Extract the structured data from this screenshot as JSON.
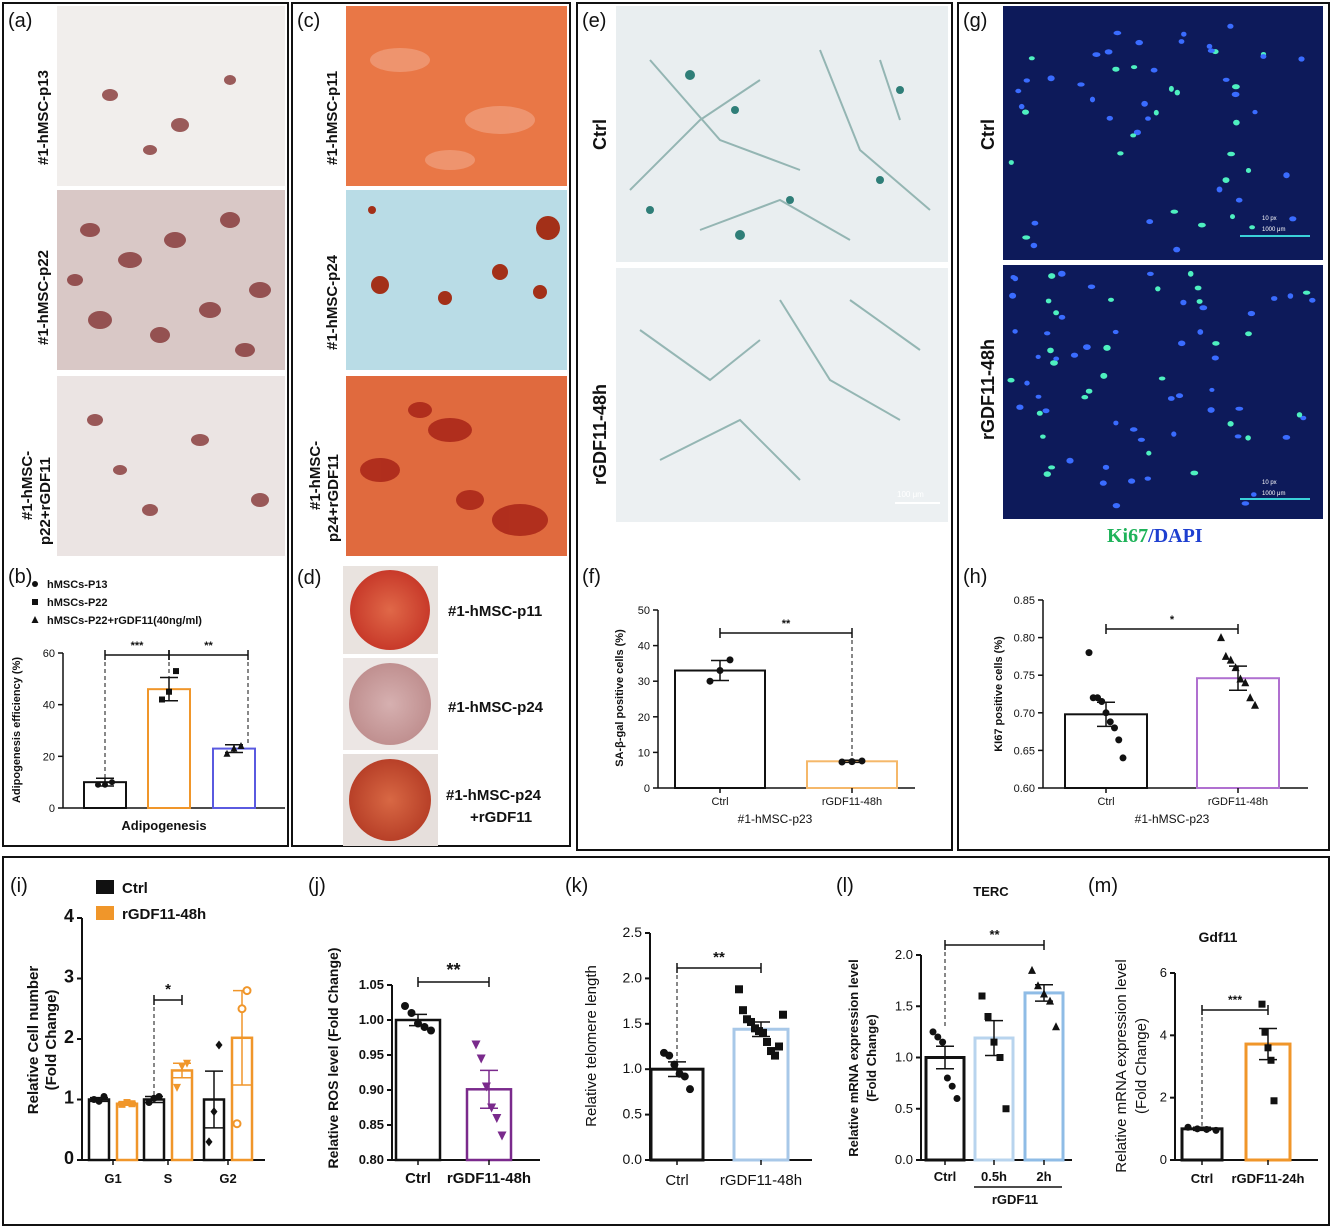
{
  "panel_letters": {
    "a": "(a)",
    "b": "(b)",
    "c": "(c)",
    "d": "(d)",
    "e": "(e)",
    "f": "(f)",
    "g": "(g)",
    "h": "(h)",
    "i": "(i)",
    "j": "(j)",
    "k": "(k)",
    "l": "(l)",
    "m": "(m)"
  },
  "image_labels": {
    "a": [
      "#1-hMSC-p13",
      "#1-hMSC-p22",
      "#1-hMSC-",
      "p22+rGDF11"
    ],
    "c": [
      "#1-hMSC-p11",
      "#1-hMSC-p24",
      "#1-hMSC-",
      "p24+rGDF11"
    ],
    "d": [
      "#1-hMSC-p11",
      "#1-hMSC-p24",
      "#1-hMSC-p24",
      "+rGDF11"
    ],
    "e": [
      "Ctrl",
      "rGDF11-48h"
    ],
    "g": [
      "Ctrl",
      "rGDF11-48h"
    ],
    "g_stain": [
      "Ki67",
      "/",
      "DAPI"
    ],
    "e_scalebar": "100 μm",
    "g_scalebar": [
      "10 px",
      "1000 μm"
    ]
  },
  "colors": {
    "orange": "#F0962A",
    "blue": "#5A5AE0",
    "purple": "#7A2A8C",
    "lightblue": "#A8C8E8",
    "violet": "#B070D0",
    "black": "#111111",
    "ki67": "#1FB35A",
    "dapi": "#1E3FD0"
  },
  "chart_data": [
    {
      "id": "b",
      "type": "bar",
      "ylabel": "Adipogenesis efficiency (%)",
      "xlabel": "Adipogenesis",
      "ylim": [
        0,
        60
      ],
      "yticks": [
        "0",
        "20",
        "40",
        "60"
      ],
      "legend": [
        "hMSCs-P13",
        "hMSCs-P22",
        "hMSCs-P22+rGDF11(40ng/ml)"
      ],
      "values": [
        10,
        46,
        23
      ],
      "errors": [
        1.5,
        4.5,
        1.5
      ],
      "points": [
        [
          9,
          9,
          10
        ],
        [
          42,
          45,
          53
        ],
        [
          21,
          23,
          24
        ]
      ],
      "sig": [
        "***",
        "**"
      ]
    },
    {
      "id": "f",
      "type": "bar",
      "ylabel": "SA-β-gal positive cells (%)",
      "xlabel": "#1-hMSC-p23",
      "ylim": [
        0,
        50
      ],
      "yticks": [
        "0",
        "10",
        "20",
        "30",
        "40",
        "50"
      ],
      "categories": [
        "Ctrl",
        "rGDF11-48h"
      ],
      "values": [
        33,
        7.5
      ],
      "errors": [
        2.8,
        0.3
      ],
      "points": [
        [
          30,
          33,
          36
        ],
        [
          7.3,
          7.4,
          7.6
        ]
      ],
      "sig": [
        "**"
      ]
    },
    {
      "id": "h",
      "type": "bar",
      "ylabel": "KI67 positive cells (%)",
      "xlabel": "#1-hMSC-p23",
      "ylim": [
        0.6,
        0.85
      ],
      "yticks": [
        "0.60",
        "0.65",
        "0.70",
        "0.75",
        "0.80",
        "0.85"
      ],
      "categories": [
        "Ctrl",
        "rGDF11-48h"
      ],
      "values": [
        0.698,
        0.746
      ],
      "errors": [
        0.016,
        0.016
      ],
      "points": [
        [
          0.78,
          0.72,
          0.72,
          0.715,
          0.7,
          0.688,
          0.68,
          0.664,
          0.64
        ],
        [
          0.8,
          0.775,
          0.77,
          0.76,
          0.745,
          0.74,
          0.72,
          0.71
        ]
      ],
      "sig": [
        "*"
      ]
    },
    {
      "id": "i",
      "type": "bar",
      "ylabel": "Relative Cell number (Fold Change)",
      "ylim": [
        0,
        4
      ],
      "yticks": [
        "0",
        "1",
        "2",
        "3",
        "4"
      ],
      "categories": [
        "G1",
        "S",
        "G2"
      ],
      "series": [
        {
          "name": "Ctrl",
          "values": [
            1.0,
            1.0,
            1.0
          ],
          "errors": [
            0.03,
            0.05,
            0.47
          ],
          "points": [
            [
              1.0,
              0.97,
              1.05
            ],
            [
              0.95,
              1.02,
              1.05
            ],
            [
              0.3,
              0.8,
              1.9
            ]
          ]
        },
        {
          "name": "rGDF11-48h",
          "values": [
            0.93,
            1.48,
            2.02
          ],
          "errors": [
            0.02,
            0.12,
            0.78
          ],
          "points": [
            [
              0.92,
              0.95,
              0.93
            ],
            [
              1.2,
              1.55,
              1.6
            ],
            [
              0.6,
              2.5,
              2.8
            ]
          ]
        }
      ],
      "sig": [
        "*"
      ]
    },
    {
      "id": "j",
      "type": "bar",
      "ylabel": "Relative  ROS level (Fold Change)",
      "ylim": [
        0.8,
        1.05
      ],
      "yticks": [
        "0.80",
        "0.85",
        "0.90",
        "0.95",
        "1.00",
        "1.05"
      ],
      "categories": [
        "Ctrl",
        "rGDF11-48h"
      ],
      "values": [
        1.0,
        0.901
      ],
      "errors": [
        0.008,
        0.027
      ],
      "points": [
        [
          1.02,
          1.01,
          0.995,
          0.99,
          0.985
        ],
        [
          0.965,
          0.945,
          0.905,
          0.875,
          0.86,
          0.835
        ]
      ],
      "sig": [
        "**"
      ]
    },
    {
      "id": "k",
      "type": "bar",
      "ylabel": "Relative telomere length",
      "ylim": [
        0,
        2.5
      ],
      "yticks": [
        "0.0",
        "0.5",
        "1.0",
        "1.5",
        "2.0",
        "2.5"
      ],
      "categories": [
        "Ctrl",
        "rGDF11-48h"
      ],
      "values": [
        1.0,
        1.44
      ],
      "errors": [
        0.08,
        0.08
      ],
      "points": [
        [
          1.18,
          1.15,
          1.05,
          0.95,
          0.92,
          0.78
        ],
        [
          1.88,
          1.65,
          1.55,
          1.52,
          1.45,
          1.42,
          1.4,
          1.3,
          1.2,
          1.15,
          1.25,
          1.6
        ]
      ],
      "sig": [
        "**"
      ]
    },
    {
      "id": "l",
      "type": "bar",
      "title": "TERC",
      "ylabel": "Relative  mRNA expression level (Fold Change)",
      "xlabel": "rGDF11",
      "ylim": [
        0,
        2.0
      ],
      "yticks": [
        "0.0",
        "0.5",
        "1.0",
        "1.5",
        "2.0"
      ],
      "categories": [
        "Ctrl",
        "0.5h",
        "2h"
      ],
      "values": [
        1.0,
        1.19,
        1.63
      ],
      "errors": [
        0.11,
        0.17,
        0.08
      ],
      "points": [
        [
          1.25,
          1.2,
          1.15,
          0.8,
          0.72,
          0.6
        ],
        [
          1.6,
          1.4,
          1.15,
          1.0,
          0.5
        ],
        [
          1.85,
          1.7,
          1.62,
          1.55,
          1.3
        ]
      ],
      "sig": [
        "**"
      ]
    },
    {
      "id": "m",
      "type": "bar",
      "title": "Gdf11",
      "ylabel": "Relative  mRNA expression level (Fold Change)",
      "ylim": [
        0,
        6
      ],
      "yticks": [
        "0",
        "2",
        "4",
        "6"
      ],
      "categories": [
        "Ctrl",
        "rGDF11-24h"
      ],
      "values": [
        1.0,
        3.72
      ],
      "errors": [
        0.05,
        0.5
      ],
      "points": [
        [
          1.05,
          1.0,
          0.98,
          0.95
        ],
        [
          5.0,
          4.1,
          3.6,
          3.2,
          1.9
        ]
      ],
      "sig": [
        "***"
      ]
    }
  ]
}
